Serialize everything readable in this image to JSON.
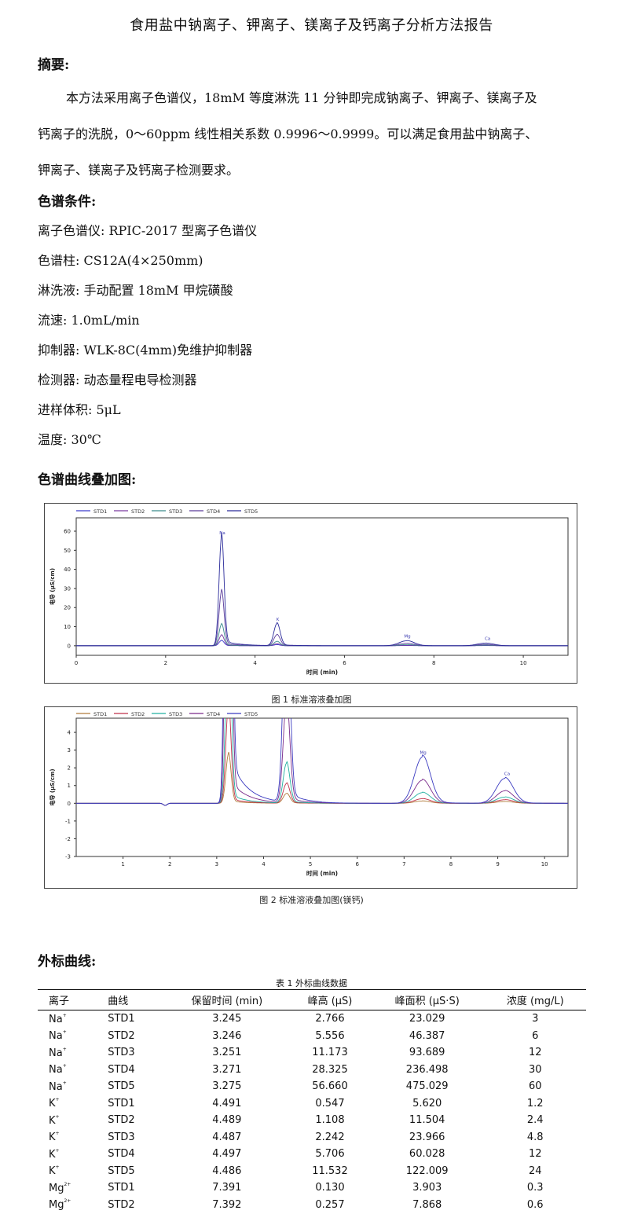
{
  "title": "食用盐中钠离子、钾离子、镁离子及钙离子分析方法报告",
  "abstract": {
    "heading": "摘要:",
    "line1": "本方法采用离子色谱仪，18mM 等度淋洗 11 分钟即完成钠离子、钾离子、镁离子及",
    "line2": "钙离子的洗脱，0～60ppm 线性相关系数 0.9996～0.9999。可以满足食用盐中钠离子、",
    "line3": "钾离子、镁离子及钙离子检测要求。"
  },
  "conditions": {
    "heading": "色谱条件:",
    "items": [
      "离子色谱仪:  RPIC-2017 型离子色谱仪",
      "色谱柱:  CS12A(4×250mm)",
      "淋洗液:  手动配置 18mM 甲烷磺酸",
      "流速:  1.0mL/min",
      "抑制器:  WLK-8C(4mm)免维护抑制器",
      "检测器:  动态量程电导检测器",
      "进样体积:  5μL",
      "温度:  30℃"
    ]
  },
  "overlay_heading": "色谱曲线叠加图:",
  "fig1": {
    "caption": "图 1  标准溶液叠加图"
  },
  "fig2": {
    "caption": "图 2  标准溶液叠加图(镁钙)"
  },
  "external_heading": "外标曲线:",
  "table": {
    "caption": "表 1  外标曲线数据",
    "headers": [
      "离子",
      "曲线",
      "保留时间 (min)",
      "峰高 (μS)",
      "峰面积 (μS·S)",
      "浓度 (mg/L)"
    ],
    "rows": [
      [
        "Na",
        "+",
        "STD1",
        "3.245",
        "2.766",
        "23.029",
        "3"
      ],
      [
        "Na",
        "+",
        "STD2",
        "3.246",
        "5.556",
        "46.387",
        "6"
      ],
      [
        "Na",
        "+",
        "STD3",
        "3.251",
        "11.173",
        "93.689",
        "12"
      ],
      [
        "Na",
        "+",
        "STD4",
        "3.271",
        "28.325",
        "236.498",
        "30"
      ],
      [
        "Na",
        "+",
        "STD5",
        "3.275",
        "56.660",
        "475.029",
        "60"
      ],
      [
        "K",
        "+",
        "STD1",
        "4.491",
        "0.547",
        "5.620",
        "1.2"
      ],
      [
        "K",
        "+",
        "STD2",
        "4.489",
        "1.108",
        "11.504",
        "2.4"
      ],
      [
        "K",
        "+",
        "STD3",
        "4.487",
        "2.242",
        "23.966",
        "4.8"
      ],
      [
        "K",
        "+",
        "STD4",
        "4.497",
        "5.706",
        "60.028",
        "12"
      ],
      [
        "K",
        "+",
        "STD5",
        "4.486",
        "11.532",
        "122.009",
        "24"
      ],
      [
        "Mg",
        "2+",
        "STD1",
        "7.391",
        "0.130",
        "3.903",
        "0.3"
      ],
      [
        "Mg",
        "2+",
        "STD2",
        "7.392",
        "0.257",
        "7.868",
        "0.6"
      ]
    ]
  },
  "chart_data": [
    {
      "type": "line",
      "xlabel": "时间 (min)",
      "ylabel": "电导 (μS/cm)",
      "xlim": [
        0,
        11
      ],
      "ylim": [
        -5,
        67
      ],
      "xticks": [
        "0",
        "2",
        "4",
        "6",
        "8",
        "10"
      ],
      "yticks": [
        "60",
        "50",
        "40",
        "30",
        "20",
        "10",
        "0"
      ],
      "legend": [
        "STD1",
        "STD2",
        "STD3",
        "STD4",
        "STD5"
      ],
      "legend_position": "top-left",
      "peak_labels": [
        "Na",
        "K",
        "Mg",
        "Ca"
      ],
      "colors": [
        "#3a3acc",
        "#7a3aa0",
        "#3a8c8c",
        "#5a3a9a",
        "#2a2a9a"
      ],
      "peaks": [
        {
          "ion": "Na",
          "rt": 3.25,
          "heights": [
            2.766,
            5.556,
            11.173,
            28.325,
            56.66
          ]
        },
        {
          "ion": "K",
          "rt": 4.49,
          "heights": [
            0.547,
            1.108,
            2.242,
            5.706,
            11.532
          ]
        },
        {
          "ion": "Mg",
          "rt": 7.39,
          "heights": [
            0.13,
            0.257,
            0.6,
            1.3,
            2.6
          ]
        },
        {
          "ion": "Ca",
          "rt": 9.15,
          "heights": [
            0.1,
            0.2,
            0.35,
            0.7,
            1.4
          ]
        }
      ]
    },
    {
      "type": "line",
      "xlabel": "时间 (min)",
      "ylabel": "电导 (μS/cm)",
      "xlim": [
        0,
        10.5
      ],
      "ylim": [
        -3,
        4.8
      ],
      "xticks": [
        "1",
        "2",
        "3",
        "4",
        "5",
        "6",
        "7",
        "8",
        "9",
        "10"
      ],
      "yticks": [
        "4",
        "3",
        "2",
        "1",
        "0",
        "-1",
        "-2",
        "-3"
      ],
      "legend": [
        "STD1",
        "STD2",
        "STD3",
        "STD4",
        "STD5"
      ],
      "legend_position": "top-left",
      "peak_labels": [
        "Mg",
        "Ca"
      ],
      "colors": [
        "#b07a3a",
        "#c0304a",
        "#20b0a0",
        "#7a2a8a",
        "#3a3ac0"
      ],
      "peaks": [
        {
          "ion": "Na",
          "rt": 3.25,
          "heights": [
            2.766,
            5.556,
            11.173,
            28.325,
            56.66
          ]
        },
        {
          "ion": "K",
          "rt": 4.49,
          "heights": [
            0.547,
            1.108,
            2.242,
            5.706,
            11.532
          ]
        },
        {
          "ion": "Mg",
          "rt": 7.39,
          "heights": [
            0.13,
            0.257,
            0.6,
            1.3,
            2.6
          ]
        },
        {
          "ion": "Ca",
          "rt": 9.15,
          "heights": [
            0.1,
            0.2,
            0.35,
            0.7,
            1.4
          ]
        }
      ]
    }
  ]
}
